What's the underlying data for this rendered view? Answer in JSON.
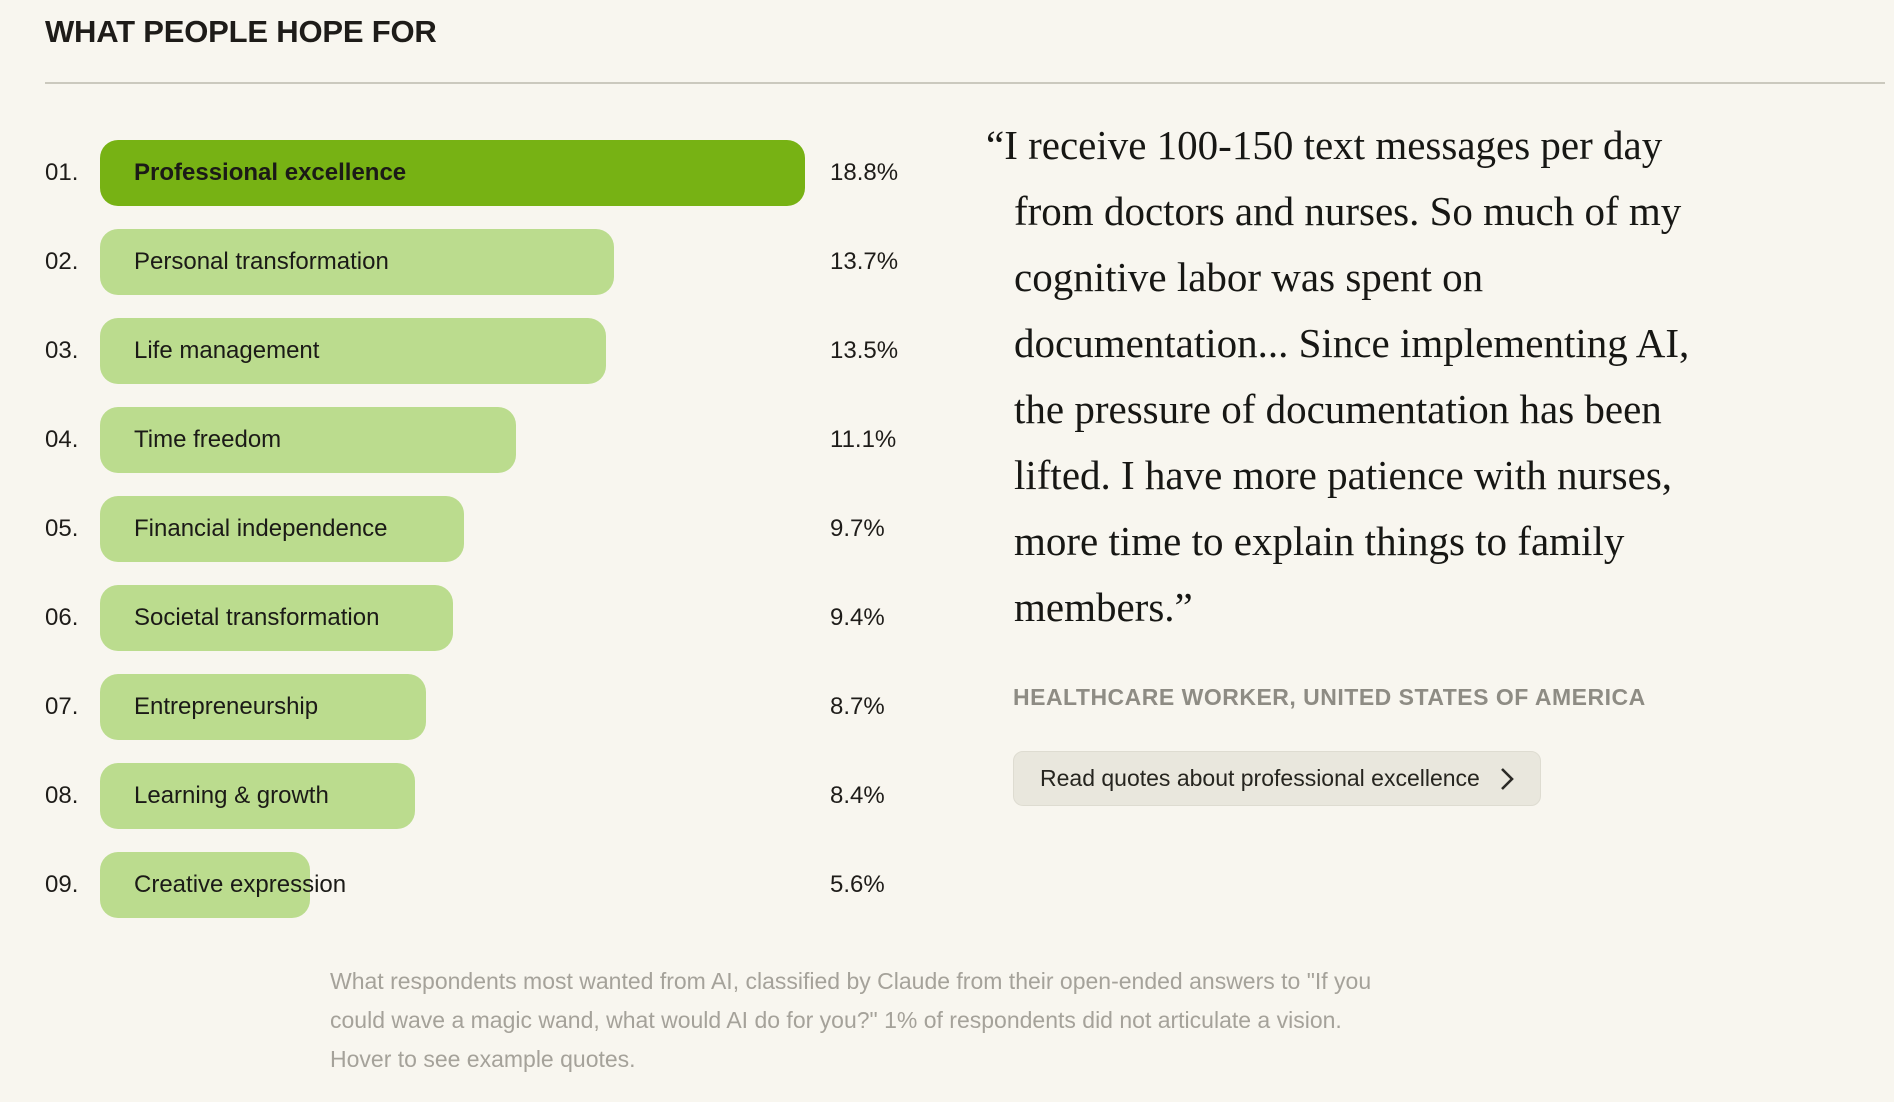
{
  "header": {
    "title": "WHAT PEOPLE HOPE FOR"
  },
  "chart_data": {
    "type": "bar",
    "orientation": "horizontal",
    "title": "WHAT PEOPLE HOPE FOR",
    "xlabel": "",
    "ylabel": "",
    "unit": "%",
    "xlim": [
      0,
      18.8
    ],
    "grid": false,
    "legend": "none",
    "ranks": [
      "01.",
      "02.",
      "03.",
      "04.",
      "05.",
      "06.",
      "07.",
      "08.",
      "09."
    ],
    "categories": [
      "Professional excellence",
      "Personal transformation",
      "Life management",
      "Time freedom",
      "Financial independence",
      "Societal transformation",
      "Entrepreneurship",
      "Learning & growth",
      "Creative expression"
    ],
    "values": [
      18.8,
      13.7,
      13.5,
      11.1,
      9.7,
      9.4,
      8.7,
      8.4,
      5.6
    ],
    "value_labels": [
      "18.8%",
      "13.7%",
      "13.5%",
      "11.1%",
      "9.7%",
      "9.4%",
      "8.7%",
      "8.4%",
      "5.6%"
    ],
    "highlighted_index": 0,
    "colors": {
      "highlight_bar": "#77B214",
      "default_bar": "#BBDC8E",
      "background": "#F8F6EF"
    }
  },
  "quote_panel": {
    "quote": "“I receive 100-150 text messages per day\nfrom doctors and nurses. So much of my\ncognitive labor was spent on\ndocumentation... Since implementing AI,\nthe pressure of documentation has been\nlifted. I have more patience with nurses,\nmore time to explain things to family\nmembers.”",
    "attribution": "HEALTHCARE WORKER, UNITED STATES OF AMERICA",
    "button_label": "Read quotes about professional excellence",
    "button_icon": "chevron-right-icon"
  },
  "footnote": "What respondents most wanted from AI, classified by Claude from their open-ended answers to \"If you\ncould wave a magic wand, what would AI do for you?\" 1% of respondents did not articulate a vision.\nHover to see example quotes."
}
